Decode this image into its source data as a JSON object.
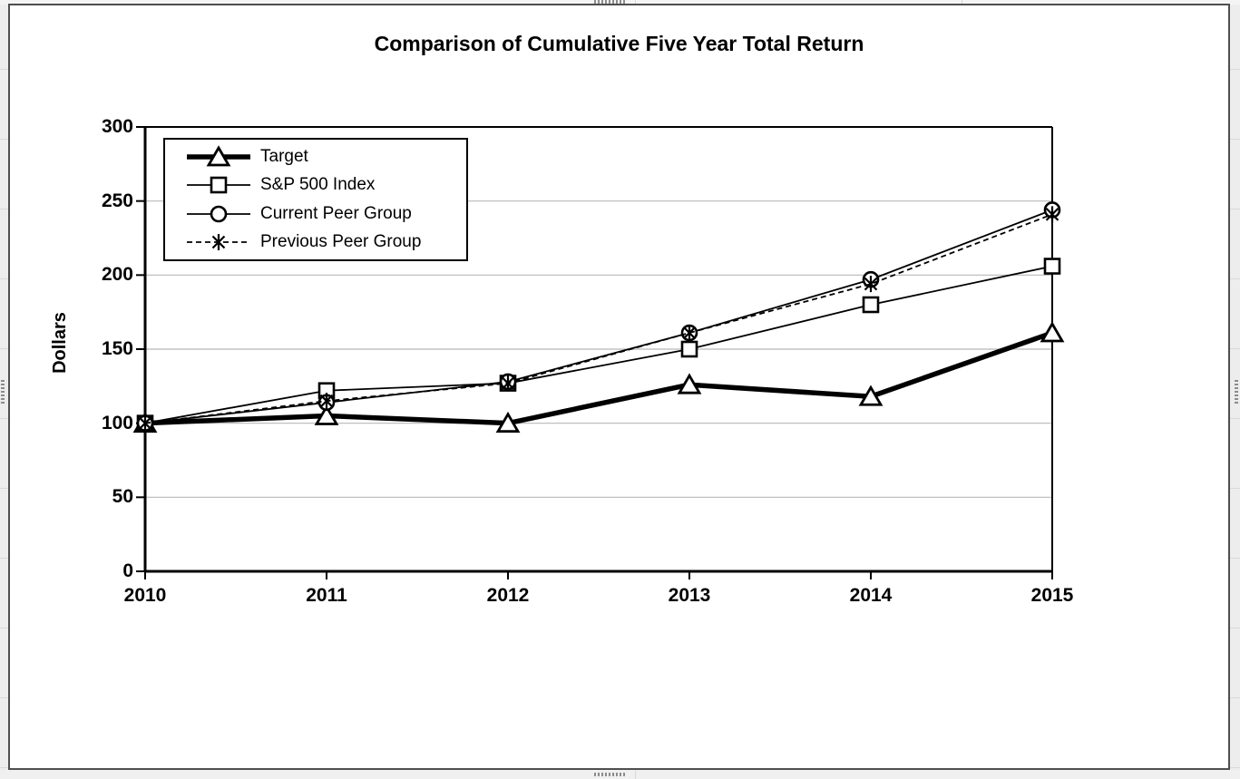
{
  "window": {
    "worksheet_strip_color": "#ededed",
    "frame_border_color": "#4f4f4f",
    "handle_color": "#8c8c8c"
  },
  "chart_data": {
    "type": "line",
    "title": "Comparison of Cumulative Five Year Total Return",
    "xlabel": "",
    "ylabel": "Dollars",
    "categories": [
      "2010",
      "2011",
      "2012",
      "2013",
      "2014",
      "2015"
    ],
    "y_ticks": [
      0,
      50,
      100,
      150,
      200,
      250,
      300
    ],
    "ylim": [
      0,
      300
    ],
    "grid": true,
    "legend_position": "top-left-inside",
    "series": [
      {
        "name": "Target",
        "marker": "triangle",
        "line": "thick-solid",
        "values": [
          100,
          105,
          100,
          126,
          118,
          161
        ]
      },
      {
        "name": "S&P 500 Index",
        "marker": "square",
        "line": "thin-solid",
        "values": [
          100,
          122,
          127,
          150,
          180,
          206
        ]
      },
      {
        "name": "Current Peer Group",
        "marker": "circle",
        "line": "thin-solid",
        "values": [
          100,
          114,
          128,
          161,
          197,
          244
        ]
      },
      {
        "name": "Previous Peer Group",
        "marker": "asterisk",
        "line": "thin-dashed",
        "values": [
          100,
          115,
          127,
          161,
          194,
          241
        ]
      }
    ],
    "colors": {
      "series": "#000000",
      "gridline": "#b8b8b8",
      "plot_background": "#ffffff",
      "text": "#000000"
    }
  }
}
